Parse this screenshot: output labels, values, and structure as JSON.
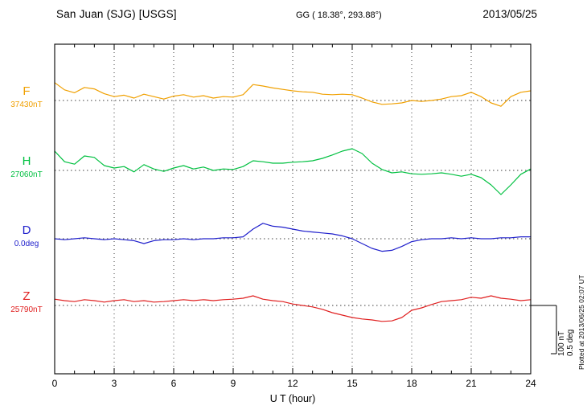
{
  "header": {
    "station": "San Juan (SJG)  [USGS]",
    "gg": "GG ( 18.38°, 293.88°)",
    "date": "2013/05/25"
  },
  "xaxis": {
    "label": "U T (hour)",
    "ticks": [
      "0",
      "3",
      "6",
      "9",
      "12",
      "15",
      "18",
      "21",
      "24"
    ]
  },
  "scale_bar": {
    "label_nt": "100 nT",
    "label_deg": "0.5 deg"
  },
  "footer_note": "Plotted at 2013/06/25 02:07 UT",
  "channels": [
    {
      "id": "F",
      "label": "F",
      "value": "37430nT",
      "color": "#f0a000"
    },
    {
      "id": "H",
      "label": "H",
      "value": "27060nT",
      "color": "#00c040"
    },
    {
      "id": "D",
      "label": "D",
      "value": "0.0deg",
      "color": "#2020cc"
    },
    {
      "id": "Z",
      "label": "Z",
      "value": "25790nT",
      "color": "#e02020"
    }
  ],
  "chart_data": {
    "type": "line",
    "title": "San Juan (SJG) [USGS] magnetogram 2013/05/25",
    "xlabel": "U T (hour)",
    "x_range": [
      0,
      24
    ],
    "x_step_hours": 0.5,
    "grid": "dotted vertical every 3 hours, dotted horizontal at each channel baseline",
    "scale": {
      "nT_per_division": 100,
      "deg_per_division": 0.5
    },
    "series": [
      {
        "name": "F",
        "units": "nT",
        "baseline": 37430,
        "delta_values": [
          37,
          22,
          16,
          27,
          24,
          14,
          8,
          11,
          5,
          13,
          8,
          3,
          9,
          12,
          7,
          10,
          5,
          8,
          7,
          12,
          33,
          30,
          26,
          23,
          20,
          18,
          17,
          13,
          12,
          13,
          12,
          5,
          -3,
          -8,
          -7,
          -5,
          0,
          -2,
          0,
          3,
          8,
          10,
          17,
          8,
          -5,
          -12,
          8,
          17,
          20
        ]
      },
      {
        "name": "H",
        "units": "nT",
        "baseline": 27060,
        "delta_values": [
          40,
          18,
          13,
          30,
          27,
          10,
          5,
          8,
          -3,
          12,
          3,
          -2,
          5,
          10,
          3,
          7,
          0,
          3,
          2,
          8,
          20,
          18,
          15,
          15,
          17,
          18,
          20,
          25,
          32,
          40,
          45,
          35,
          15,
          2,
          -5,
          -3,
          -7,
          -8,
          -7,
          -5,
          -8,
          -12,
          -8,
          -15,
          -30,
          -50,
          -30,
          -8,
          3
        ]
      },
      {
        "name": "D",
        "units": "deg",
        "baseline": 0.0,
        "delta_values": [
          0,
          -0.01,
          0,
          0.01,
          0,
          -0.01,
          0,
          -0.01,
          -0.02,
          -0.05,
          -0.02,
          -0.01,
          -0.01,
          0,
          -0.01,
          0,
          0,
          0.01,
          0.01,
          0.02,
          0.1,
          0.16,
          0.13,
          0.12,
          0.1,
          0.08,
          0.07,
          0.06,
          0.05,
          0.03,
          0,
          -0.05,
          -0.1,
          -0.13,
          -0.12,
          -0.08,
          -0.03,
          -0.01,
          0,
          0,
          0.01,
          0,
          0.01,
          0,
          0,
          0.01,
          0.01,
          0.02,
          0.02
        ]
      },
      {
        "name": "Z",
        "units": "nT",
        "baseline": 25790,
        "delta_values": [
          13,
          10,
          8,
          12,
          10,
          7,
          10,
          12,
          8,
          10,
          7,
          8,
          10,
          12,
          10,
          12,
          10,
          12,
          13,
          15,
          20,
          13,
          10,
          8,
          3,
          0,
          -3,
          -8,
          -15,
          -20,
          -25,
          -28,
          -30,
          -33,
          -32,
          -25,
          -10,
          -5,
          2,
          8,
          10,
          12,
          17,
          15,
          20,
          15,
          13,
          10,
          12
        ]
      }
    ]
  }
}
